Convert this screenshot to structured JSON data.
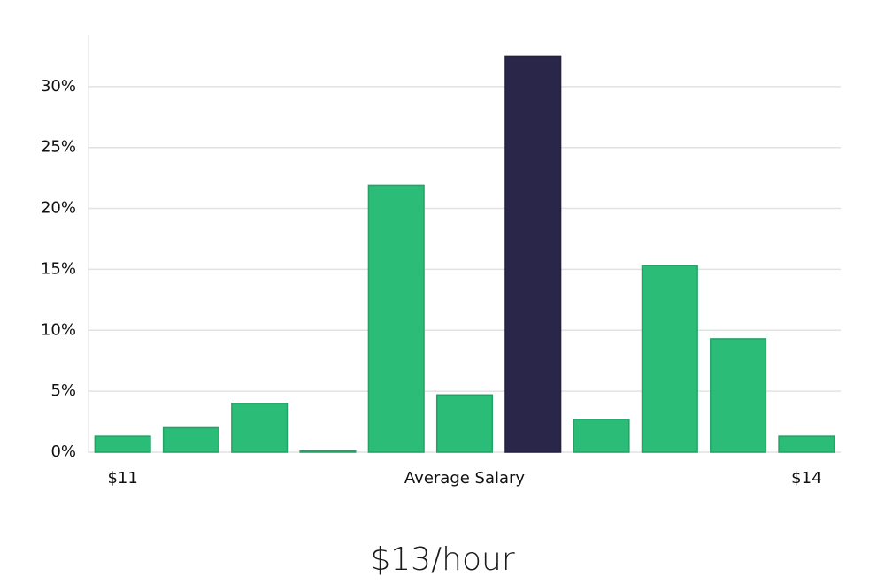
{
  "chart_data": {
    "type": "bar",
    "categories": [
      "$11",
      null,
      null,
      null,
      null,
      "Average Salary",
      null,
      null,
      null,
      null,
      "$14"
    ],
    "values": [
      1.3,
      2.0,
      4.0,
      0.1,
      21.9,
      4.7,
      32.5,
      2.7,
      15.3,
      9.3,
      1.3
    ],
    "colors": [
      "#2bbd78",
      "#2bbd78",
      "#2bbd78",
      "#2bbd78",
      "#2bbd78",
      "#2bbd78",
      "#29264a",
      "#2bbd78",
      "#2bbd78",
      "#2bbd78",
      "#2bbd78"
    ],
    "ylim": [
      0,
      34.2
    ],
    "yticks": [
      {
        "value": 0,
        "label": "0%"
      },
      {
        "value": 5,
        "label": "5%"
      },
      {
        "value": 10,
        "label": "10%"
      },
      {
        "value": 15,
        "label": "15%"
      },
      {
        "value": 20,
        "label": "20%"
      },
      {
        "value": 25,
        "label": "25%"
      },
      {
        "value": 30,
        "label": "30%"
      }
    ],
    "grid": true,
    "caption": "$13/hour"
  }
}
